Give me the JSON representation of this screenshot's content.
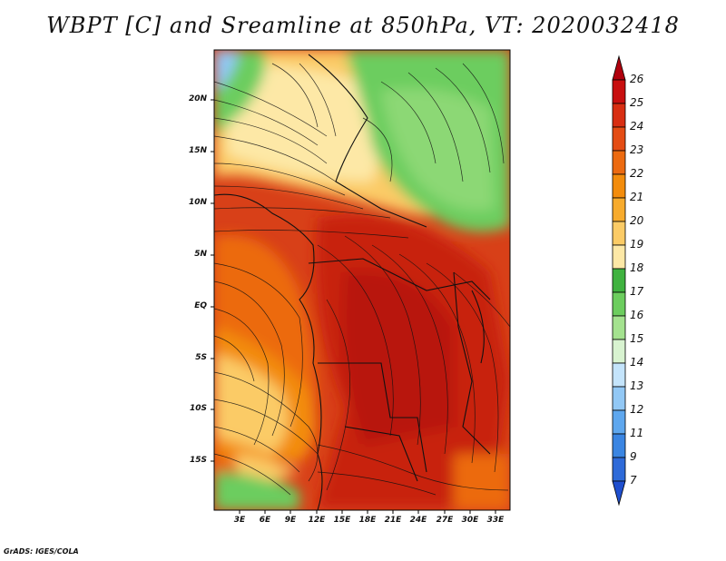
{
  "title": "WBPT [C] and Sreamline at 850hPa, VT: 2020032418",
  "footer": "GrADS: IGES/COLA",
  "lat_labels": [
    "20N",
    "15N",
    "10N",
    "5N",
    "EQ",
    "5S",
    "10S",
    "15S"
  ],
  "lon_labels": [
    "3E",
    "6E",
    "9E",
    "12E",
    "15E",
    "18E",
    "21E",
    "24E",
    "27E",
    "30E",
    "33E"
  ],
  "colorbar": {
    "labels": [
      "26",
      "25",
      "24",
      "23",
      "22",
      "21",
      "20",
      "19",
      "18",
      "17",
      "16",
      "15",
      "14",
      "13",
      "12",
      "11",
      "9",
      "7"
    ],
    "colors": [
      "#b0000d",
      "#c80f0f",
      "#d82e12",
      "#e44c14",
      "#ec6a10",
      "#f38c0c",
      "#f7ab2d",
      "#fbcb66",
      "#fde8a6",
      "#3fb23f",
      "#6ccd5e",
      "#a4e28f",
      "#d8f3d0",
      "#c4e4fb",
      "#92c8f5",
      "#5ea7ee",
      "#3a85e2",
      "#2e6ad8",
      "#1f4fcf"
    ]
  },
  "colors": {
    "warm_interior": "#d84018",
    "cool_highland": "#fde8a6",
    "green_north": "#6ccd5e",
    "ocean_blue": "#92c8f5"
  }
}
